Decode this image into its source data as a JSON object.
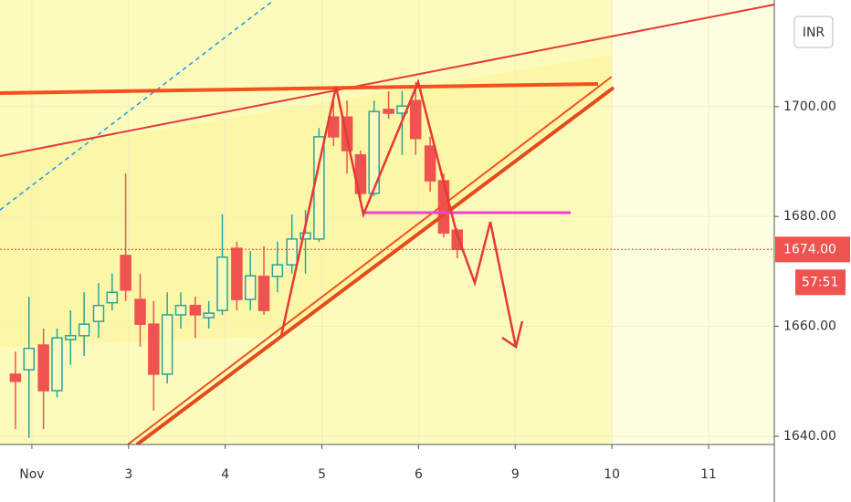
{
  "chart_data": {
    "type": "candlestick",
    "currency": "INR",
    "x": [
      -0.17,
      -0.03,
      0.12,
      0.26,
      0.4,
      0.54,
      0.69,
      0.83,
      0.97,
      1.12,
      1.26,
      1.4,
      1.54,
      1.69,
      1.83,
      1.97,
      2.12,
      2.26,
      2.4,
      2.54,
      2.69,
      2.83,
      2.97,
      3.12,
      3.26,
      3.4,
      3.54,
      3.69,
      3.83,
      3.97,
      4.12,
      4.26,
      4.4
    ],
    "open": [
      1651.3,
      1652.1,
      1656.6,
      1648.3,
      1657.6,
      1658.3,
      1660.9,
      1664.3,
      1672.9,
      1664.9,
      1660.4,
      1651.3,
      1662.1,
      1663.8,
      1661.6,
      1662.9,
      1674.2,
      1664.9,
      1669.1,
      1669.1,
      1671.2,
      1675.9,
      1675.9,
      1698.1,
      1698.1,
      1691.2,
      1684.2,
      1699.5,
      1698.8,
      1701.1,
      1692.8,
      1686.5,
      1677.5
    ],
    "high": [
      1655.4,
      1665.4,
      1659.6,
      1659.6,
      1662.9,
      1666.2,
      1667.9,
      1669.6,
      1687.8,
      1669.6,
      1664.6,
      1666.2,
      1666.2,
      1665.4,
      1664.6,
      1680.4,
      1675.4,
      1673.7,
      1674.6,
      1675.4,
      1680.4,
      1681.2,
      1696.1,
      1702.0,
      1701.1,
      1692.0,
      1701.1,
      1702.8,
      1702.8,
      1704.5,
      1694.5,
      1687.8,
      1677.8
    ],
    "low": [
      1641.3,
      1639.7,
      1641.3,
      1647.1,
      1653.0,
      1654.6,
      1657.9,
      1662.9,
      1664.6,
      1656.3,
      1644.7,
      1649.6,
      1659.6,
      1657.9,
      1659.6,
      1662.1,
      1662.9,
      1662.9,
      1662.1,
      1666.2,
      1669.6,
      1669.6,
      1675.4,
      1692.8,
      1687.8,
      1682.9,
      1683.7,
      1697.8,
      1691.2,
      1691.2,
      1684.5,
      1676.2,
      1672.4
    ],
    "close": [
      1650.0,
      1656.0,
      1648.3,
      1657.9,
      1658.3,
      1660.4,
      1663.8,
      1666.2,
      1666.6,
      1660.4,
      1651.3,
      1662.1,
      1663.8,
      1662.1,
      1662.4,
      1672.6,
      1664.9,
      1669.2,
      1662.9,
      1671.2,
      1675.9,
      1677.0,
      1694.5,
      1694.5,
      1692.0,
      1684.2,
      1699.1,
      1698.8,
      1700.1,
      1694.2,
      1686.5,
      1677.0,
      1674.0
    ],
    "up_color": "#26a69a",
    "down_color": "#ef5350",
    "xlim": [
      -0.33,
      7.68
    ],
    "xticks": [
      {
        "value": 0,
        "label": "Nov"
      },
      {
        "value": 1,
        "label": "3"
      },
      {
        "value": 2,
        "label": "4"
      },
      {
        "value": 3,
        "label": "5"
      },
      {
        "value": 4,
        "label": "6"
      },
      {
        "value": 5,
        "label": "9"
      },
      {
        "value": 6,
        "label": "10"
      },
      {
        "value": 7,
        "label": "11"
      }
    ],
    "ylim": [
      1638.5,
      1719.4
    ],
    "yticks": [
      {
        "value": 1640,
        "label": "1640.00"
      },
      {
        "value": 1660,
        "label": "1660.00"
      },
      {
        "value": 1680,
        "label": "1680.00"
      },
      {
        "value": 1700,
        "label": "1700.00"
      }
    ],
    "last_price": {
      "value": 1674,
      "label": "1674.00"
    },
    "countdown": "57:51"
  }
}
